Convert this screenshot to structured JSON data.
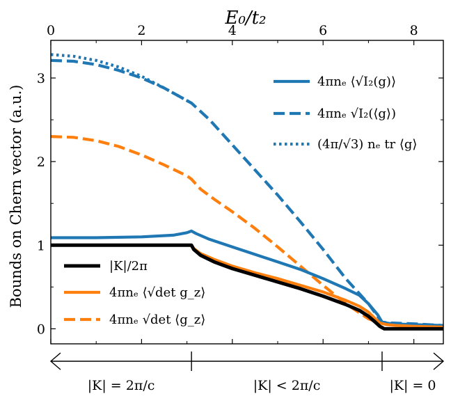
{
  "chart_data": {
    "type": "line",
    "xlabel": "E₀/t₂",
    "ylabel": "Bounds on Chern vector (a.u.)",
    "xlim": [
      0,
      8.65
    ],
    "ylim": [
      -0.18,
      3.45
    ],
    "xticks": [
      0,
      2,
      4,
      6,
      8
    ],
    "yticks": [
      0,
      1,
      2,
      3
    ],
    "series": [
      {
        "name": "black-solid",
        "legend": "|K|/2π",
        "color": "#000000",
        "dash": "solid",
        "x": [
          0,
          1,
          2,
          3.1,
          3.15,
          3.3,
          3.6,
          4,
          4.5,
          5,
          5.5,
          6,
          6.5,
          6.8,
          7.0,
          7.15,
          7.25,
          7.35,
          7.5,
          8,
          8.65
        ],
        "y": [
          1.0,
          1.0,
          1.0,
          1.0,
          0.95,
          0.88,
          0.8,
          0.72,
          0.64,
          0.56,
          0.48,
          0.39,
          0.29,
          0.22,
          0.15,
          0.08,
          0.03,
          0.0,
          0.0,
          0.0,
          0.0
        ]
      },
      {
        "name": "orange-solid",
        "legend": "4πnₑ ⟨√det g_z⟩",
        "color": "#ff7f0e",
        "dash": "solid",
        "x": [
          3.1,
          3.15,
          3.3,
          3.6,
          4,
          4.5,
          5,
          5.5,
          6,
          6.5,
          6.8,
          7.0,
          7.15,
          7.25,
          7.4,
          7.6,
          8,
          8.65
        ],
        "y": [
          1.0,
          0.96,
          0.9,
          0.83,
          0.75,
          0.67,
          0.6,
          0.52,
          0.44,
          0.34,
          0.27,
          0.2,
          0.12,
          0.07,
          0.05,
          0.04,
          0.03,
          0.02
        ]
      },
      {
        "name": "orange-dashed",
        "legend": "4πnₑ √det ⟨g_z⟩",
        "color": "#ff7f0e",
        "dash": "dashed",
        "x": [
          0,
          0.5,
          1,
          1.5,
          2,
          2.5,
          3.0,
          3.1,
          3.3,
          3.6,
          4,
          4.5,
          5,
          5.5,
          6,
          6.5,
          7.0,
          7.2,
          7.4,
          7.6,
          8,
          8.65
        ],
        "y": [
          2.3,
          2.29,
          2.25,
          2.18,
          2.08,
          1.96,
          1.83,
          1.79,
          1.67,
          1.55,
          1.4,
          1.2,
          0.98,
          0.75,
          0.52,
          0.3,
          0.12,
          0.08,
          0.06,
          0.05,
          0.04,
          0.03
        ]
      },
      {
        "name": "blue-solid",
        "legend": "4πnₑ ⟨√I₂(g)⟩",
        "color": "#1f77b4",
        "dash": "solid",
        "x": [
          0,
          1,
          2,
          2.7,
          3.0,
          3.1,
          3.2,
          3.5,
          4,
          4.5,
          5,
          5.5,
          6,
          6.5,
          6.8,
          7.0,
          7.2,
          7.3,
          7.5,
          8,
          8.65
        ],
        "y": [
          1.09,
          1.09,
          1.1,
          1.12,
          1.15,
          1.17,
          1.14,
          1.07,
          0.98,
          0.89,
          0.8,
          0.71,
          0.6,
          0.48,
          0.4,
          0.3,
          0.17,
          0.08,
          0.06,
          0.05,
          0.04
        ]
      },
      {
        "name": "blue-dashed",
        "legend": "4πnₑ √I₂(⟨g⟩)",
        "color": "#1f77b4",
        "dash": "dashed",
        "x": [
          0,
          0.5,
          1,
          1.5,
          2,
          2.5,
          3.1,
          3.5,
          4,
          4.5,
          5,
          5.5,
          6,
          6.5,
          7.0,
          7.2,
          7.3,
          7.5,
          8,
          8.65
        ],
        "y": [
          3.21,
          3.2,
          3.16,
          3.09,
          3.0,
          2.88,
          2.7,
          2.5,
          2.2,
          1.9,
          1.6,
          1.28,
          0.95,
          0.6,
          0.3,
          0.15,
          0.08,
          0.07,
          0.06,
          0.04
        ]
      },
      {
        "name": "blue-dotted",
        "legend": "(4π/√3) nₑ tr ⟨g⟩",
        "color": "#1f77b4",
        "dash": "dotted",
        "x": [
          0,
          0.5,
          1,
          1.5,
          2,
          2.5,
          3.1
        ],
        "y": [
          3.28,
          3.26,
          3.21,
          3.13,
          3.02,
          2.88,
          2.7
        ]
      }
    ],
    "regimes": [
      {
        "label": "|K| = 2π/c",
        "from": 0,
        "to": 3.1
      },
      {
        "label": "|K| < 2π/c",
        "from": 3.1,
        "to": 7.3
      },
      {
        "label": "|K| = 0",
        "from": 7.3,
        "to": 8.65
      }
    ]
  }
}
